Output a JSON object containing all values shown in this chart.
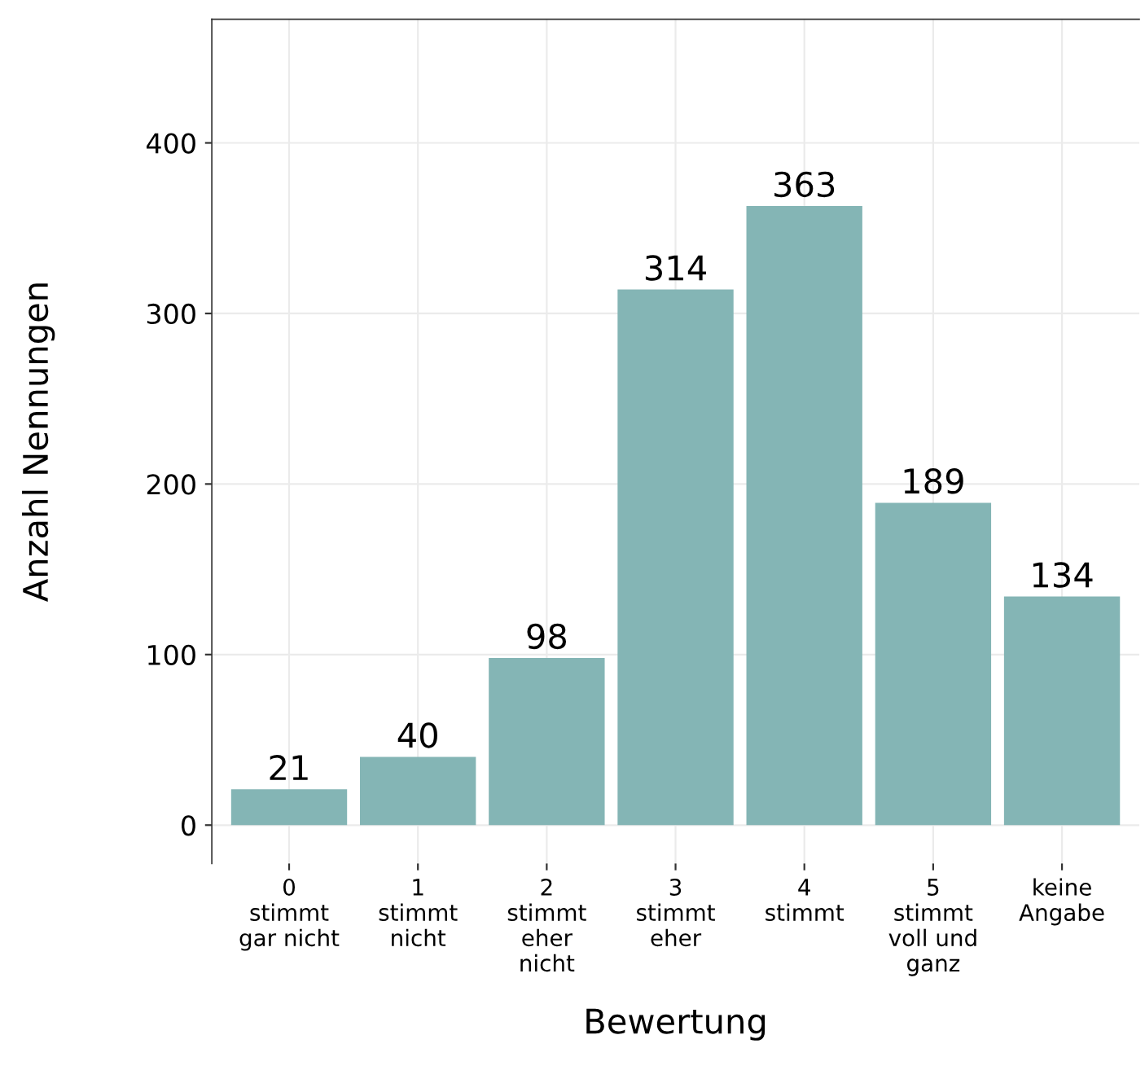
{
  "chart_data": {
    "type": "bar",
    "xlabel": "Bewertung",
    "ylabel": "Anzahl Nennungen",
    "categories": [
      "0\nstimmt\ngar nicht",
      "1\nstimmt\nnicht",
      "2\nstimmt\neher\nnicht",
      "3\nstimmt\neher",
      "4\nstimmt",
      "5\nstimmt\nvoll und\nganz",
      "keine\nAngabe"
    ],
    "values": [
      21,
      40,
      98,
      314,
      363,
      189,
      134
    ],
    "color": "#84b5b5",
    "ylim": [
      -22.5,
      472.5
    ],
    "yticks": [
      0,
      100,
      200,
      300,
      400
    ],
    "grid": true,
    "data_labels": true
  }
}
